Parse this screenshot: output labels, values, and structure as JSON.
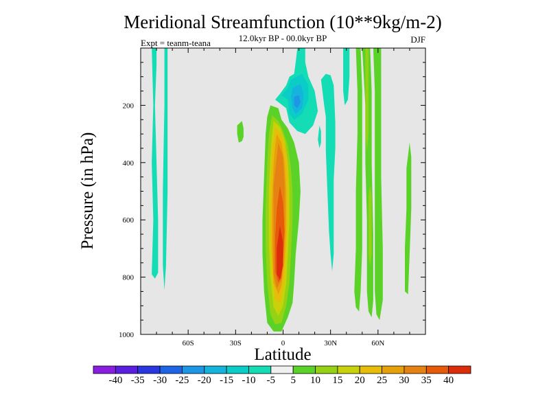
{
  "chart_data": {
    "type": "contour",
    "title": "Meridional Streamfunction (10**9kg/m-2)",
    "subtitle": "12.0kyr BP - 00.0kyr BP",
    "left_label": "Expt = teanm-teana",
    "right_label": "DJF",
    "xlabel": "Latitude",
    "ylabel": "Pressure (in hPa)",
    "x_range": [
      -90,
      90
    ],
    "y_range": [
      0,
      1000
    ],
    "y_reversed": true,
    "x_ticks": [
      {
        "value": -60,
        "label": "60S"
      },
      {
        "value": -30,
        "label": "30S"
      },
      {
        "value": 0,
        "label": "0"
      },
      {
        "value": 30,
        "label": "30N"
      },
      {
        "value": 60,
        "label": "60N"
      }
    ],
    "y_ticks": [
      {
        "value": 200,
        "label": "200"
      },
      {
        "value": 400,
        "label": "400"
      },
      {
        "value": 600,
        "label": "600"
      },
      {
        "value": 800,
        "label": "800"
      },
      {
        "value": 1000,
        "label": "1000"
      }
    ],
    "background_color": "#e6e6e6",
    "contour_levels": [
      -40,
      -35,
      -30,
      -25,
      -20,
      -15,
      -10,
      -5,
      5,
      10,
      15,
      20,
      25,
      30,
      35,
      40
    ],
    "colorbar_labels": [
      "-40",
      "-35",
      "-30",
      "-25",
      "-20",
      "-15",
      "-10",
      "-5",
      "5",
      "10",
      "15",
      "20",
      "25",
      "30",
      "35",
      "40"
    ],
    "colorbar_colors": [
      "#8a1ee0",
      "#5a1ee0",
      "#2837e0",
      "#1e64e6",
      "#1e96e6",
      "#14b4dc",
      "#0acdc8",
      "#14dcb4",
      "#f0f0f0",
      "#5ad228",
      "#96d214",
      "#c8d20a",
      "#e6be0a",
      "#e6a00a",
      "#e68214",
      "#e65a0a",
      "#dc2d0a"
    ],
    "regions": [
      {
        "level": -5,
        "points": [
          [
            -83,
            0
          ],
          [
            -80,
            0
          ],
          [
            -80,
            60
          ],
          [
            -81,
            200
          ],
          [
            -80,
            400
          ],
          [
            -79,
            600
          ],
          [
            -79,
            785
          ],
          [
            -81,
            805
          ],
          [
            -83,
            790
          ],
          [
            -82,
            600
          ],
          [
            -83,
            400
          ],
          [
            -82,
            200
          ]
        ]
      },
      {
        "level": -5,
        "points": [
          [
            -75,
            0
          ],
          [
            -73,
            0
          ],
          [
            -73,
            200
          ],
          [
            -73,
            500
          ],
          [
            -74,
            760
          ],
          [
            -75,
            845
          ],
          [
            -76,
            760
          ],
          [
            -76,
            500
          ],
          [
            -75,
            200
          ]
        ]
      },
      {
        "level": 5,
        "points": [
          [
            -29,
            270
          ],
          [
            -26,
            255
          ],
          [
            -25,
            280
          ],
          [
            -25,
            310
          ],
          [
            -26,
            325
          ],
          [
            -28,
            330
          ],
          [
            -29,
            300
          ]
        ]
      },
      {
        "level": 5,
        "points": [
          [
            -8,
            200
          ],
          [
            -3,
            210
          ],
          [
            -1,
            250
          ],
          [
            3,
            280
          ],
          [
            7,
            330
          ],
          [
            10,
            400
          ],
          [
            11,
            500
          ],
          [
            10,
            600
          ],
          [
            8,
            720
          ],
          [
            7,
            820
          ],
          [
            6,
            890
          ],
          [
            3,
            940
          ],
          [
            -1,
            990
          ],
          [
            -6,
            990
          ],
          [
            -10,
            960
          ],
          [
            -12,
            850
          ],
          [
            -13,
            720
          ],
          [
            -13,
            600
          ],
          [
            -12,
            450
          ],
          [
            -11,
            300
          ],
          [
            -10,
            240
          ]
        ]
      },
      {
        "level": 10,
        "points": [
          [
            -7,
            235
          ],
          [
            -3,
            255
          ],
          [
            0,
            290
          ],
          [
            3,
            340
          ],
          [
            5,
            420
          ],
          [
            6,
            500
          ],
          [
            6,
            600
          ],
          [
            5,
            720
          ],
          [
            4,
            820
          ],
          [
            2,
            900
          ],
          [
            -1,
            960
          ],
          [
            -5,
            965
          ],
          [
            -8,
            930
          ],
          [
            -10,
            820
          ],
          [
            -11,
            700
          ],
          [
            -11,
            550
          ],
          [
            -10,
            400
          ],
          [
            -9,
            300
          ]
        ]
      },
      {
        "level": 15,
        "points": [
          [
            -6,
            255
          ],
          [
            -2,
            275
          ],
          [
            1,
            320
          ],
          [
            3,
            400
          ],
          [
            4,
            500
          ],
          [
            4,
            600
          ],
          [
            3,
            720
          ],
          [
            2,
            820
          ],
          [
            0,
            900
          ],
          [
            -3,
            935
          ],
          [
            -6,
            905
          ],
          [
            -8,
            800
          ],
          [
            -9,
            680
          ],
          [
            -9,
            500
          ],
          [
            -8,
            380
          ],
          [
            -7,
            300
          ]
        ]
      },
      {
        "level": 20,
        "points": [
          [
            -5,
            275
          ],
          [
            -1,
            300
          ],
          [
            2,
            360
          ],
          [
            3,
            450
          ],
          [
            3,
            600
          ],
          [
            2,
            720
          ],
          [
            1,
            810
          ],
          [
            -2,
            890
          ],
          [
            -5,
            880
          ],
          [
            -7,
            780
          ],
          [
            -8,
            660
          ],
          [
            -8,
            480
          ],
          [
            -7,
            360
          ]
        ]
      },
      {
        "level": 25,
        "points": [
          [
            -4,
            300
          ],
          [
            -1,
            330
          ],
          [
            1,
            400
          ],
          [
            2,
            500
          ],
          [
            2,
            620
          ],
          [
            1,
            740
          ],
          [
            -1,
            830
          ],
          [
            -3,
            860
          ],
          [
            -6,
            820
          ],
          [
            -7,
            700
          ],
          [
            -7,
            540
          ],
          [
            -6,
            400
          ],
          [
            -5,
            340
          ]
        ]
      },
      {
        "level": 30,
        "points": [
          [
            -3,
            330
          ],
          [
            0,
            380
          ],
          [
            1,
            480
          ],
          [
            1,
            600
          ],
          [
            0,
            740
          ],
          [
            -1,
            810
          ],
          [
            -4,
            840
          ],
          [
            -6,
            790
          ],
          [
            -6,
            640
          ],
          [
            -6,
            480
          ],
          [
            -4,
            380
          ]
        ]
      },
      {
        "level": 35,
        "points": [
          [
            -2,
            480
          ],
          [
            0,
            540
          ],
          [
            1,
            640
          ],
          [
            0,
            740
          ],
          [
            -1,
            800
          ],
          [
            -3,
            820
          ],
          [
            -5,
            780
          ],
          [
            -5,
            660
          ],
          [
            -4,
            560
          ]
        ]
      },
      {
        "level": 40,
        "points": [
          [
            -2,
            620
          ],
          [
            0,
            680
          ],
          [
            0,
            760
          ],
          [
            -2,
            810
          ],
          [
            -4,
            790
          ],
          [
            -4,
            700
          ]
        ]
      },
      {
        "level": -5,
        "points": [
          [
            9,
            0
          ],
          [
            14,
            0
          ],
          [
            14,
            50
          ],
          [
            16,
            100
          ],
          [
            20,
            150
          ],
          [
            22,
            220
          ],
          [
            19,
            270
          ],
          [
            14,
            300
          ],
          [
            9,
            290
          ],
          [
            4,
            260
          ],
          [
            2,
            210
          ],
          [
            -5,
            180
          ],
          [
            -2,
            160
          ],
          [
            2,
            130
          ],
          [
            4,
            100
          ],
          [
            7,
            90
          ],
          [
            8,
            50
          ]
        ]
      },
      {
        "level": -10,
        "points": [
          [
            5,
            110
          ],
          [
            12,
            90
          ],
          [
            16,
            130
          ],
          [
            16,
            180
          ],
          [
            12,
            230
          ],
          [
            7,
            250
          ],
          [
            4,
            230
          ],
          [
            3,
            180
          ],
          [
            -1,
            165
          ],
          [
            3,
            140
          ]
        ]
      },
      {
        "level": -15,
        "points": [
          [
            6,
            140
          ],
          [
            11,
            125
          ],
          [
            13,
            160
          ],
          [
            12,
            210
          ],
          [
            8,
            230
          ],
          [
            6,
            210
          ],
          [
            5,
            170
          ]
        ]
      },
      {
        "level": -20,
        "points": [
          [
            7,
            170
          ],
          [
            10,
            165
          ],
          [
            11,
            190
          ],
          [
            9,
            210
          ],
          [
            7,
            200
          ]
        ]
      },
      {
        "level": -5,
        "points": [
          [
            24,
            110
          ],
          [
            26,
            200
          ],
          [
            27,
            240
          ],
          [
            27,
            360
          ],
          [
            28,
            500
          ],
          [
            29,
            640
          ],
          [
            30,
            720
          ],
          [
            31,
            780
          ],
          [
            32,
            720
          ],
          [
            32,
            600
          ],
          [
            32,
            460
          ],
          [
            33,
            350
          ],
          [
            33,
            260
          ],
          [
            32,
            130
          ],
          [
            30,
            95
          ],
          [
            27,
            90
          ]
        ]
      },
      {
        "level": -5,
        "points": [
          [
            23,
            270
          ],
          [
            24,
            290
          ],
          [
            24,
            330
          ],
          [
            23,
            350
          ],
          [
            22,
            320
          ]
        ]
      },
      {
        "level": -5,
        "points": [
          [
            38,
            0
          ],
          [
            42,
            0
          ],
          [
            42,
            100
          ],
          [
            41,
            180
          ],
          [
            39,
            200
          ],
          [
            38,
            150
          ]
        ]
      },
      {
        "level": 5,
        "points": [
          [
            46,
            0
          ],
          [
            49,
            0
          ],
          [
            50,
            150
          ],
          [
            50,
            300
          ],
          [
            50,
            500
          ],
          [
            50,
            700
          ],
          [
            49,
            850
          ],
          [
            48,
            920
          ],
          [
            46,
            905
          ],
          [
            45,
            850
          ],
          [
            46,
            700
          ],
          [
            46,
            500
          ],
          [
            47,
            300
          ],
          [
            47,
            150
          ]
        ]
      },
      {
        "level": 5,
        "points": [
          [
            50,
            0
          ],
          [
            55,
            0
          ],
          [
            56,
            150
          ],
          [
            56,
            400
          ],
          [
            57,
            650
          ],
          [
            57,
            880
          ],
          [
            56,
            940
          ],
          [
            54,
            920
          ],
          [
            53,
            850
          ],
          [
            53,
            600
          ],
          [
            52,
            400
          ],
          [
            52,
            200
          ]
        ]
      },
      {
        "level": 5,
        "points": [
          [
            57,
            0
          ],
          [
            62,
            0
          ],
          [
            62,
            200
          ],
          [
            62,
            450
          ],
          [
            63,
            700
          ],
          [
            63,
            880
          ],
          [
            61,
            950
          ],
          [
            59,
            930
          ],
          [
            58,
            850
          ],
          [
            58,
            600
          ],
          [
            58,
            350
          ],
          [
            58,
            150
          ]
        ]
      },
      {
        "level": 10,
        "points": [
          [
            52,
            0
          ],
          [
            54,
            0
          ],
          [
            54,
            140
          ],
          [
            54,
            300
          ],
          [
            53,
            360
          ],
          [
            52,
            300
          ],
          [
            52,
            140
          ]
        ]
      },
      {
        "level": 10,
        "points": [
          [
            55,
            480
          ],
          [
            56,
            520
          ],
          [
            56,
            720
          ],
          [
            55,
            760
          ],
          [
            54,
            720
          ],
          [
            54,
            520
          ]
        ]
      },
      {
        "level": 5,
        "points": [
          [
            78,
            420
          ],
          [
            80,
            330
          ],
          [
            81,
            380
          ],
          [
            81,
            560
          ],
          [
            80,
            720
          ],
          [
            79,
            860
          ],
          [
            77,
            850
          ],
          [
            77,
            700
          ],
          [
            78,
            560
          ]
        ]
      }
    ]
  }
}
